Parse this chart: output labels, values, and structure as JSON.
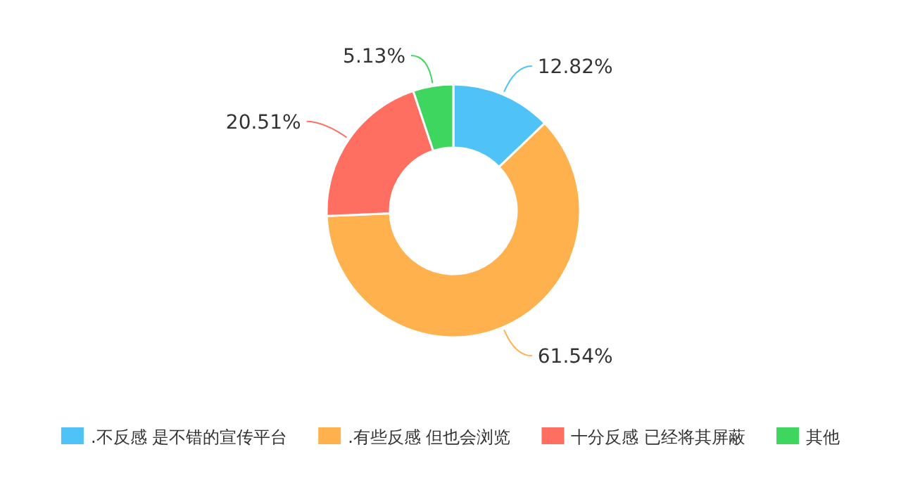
{
  "chart_data": {
    "type": "donut",
    "categories": [
      ".不反感 是不错的宣传平台",
      ".有些反感 但也会浏览",
      "十分反感 已经将其屏蔽",
      "其他"
    ],
    "values": [
      12.82,
      61.54,
      20.51,
      5.13
    ],
    "colors": [
      "#4fc3f7",
      "#ffb14e",
      "#ff6f61",
      "#3fd65f"
    ],
    "value_labels": [
      "12.82%",
      "61.54%",
      "20.51%",
      "5.13%"
    ],
    "legend": "bottom"
  }
}
